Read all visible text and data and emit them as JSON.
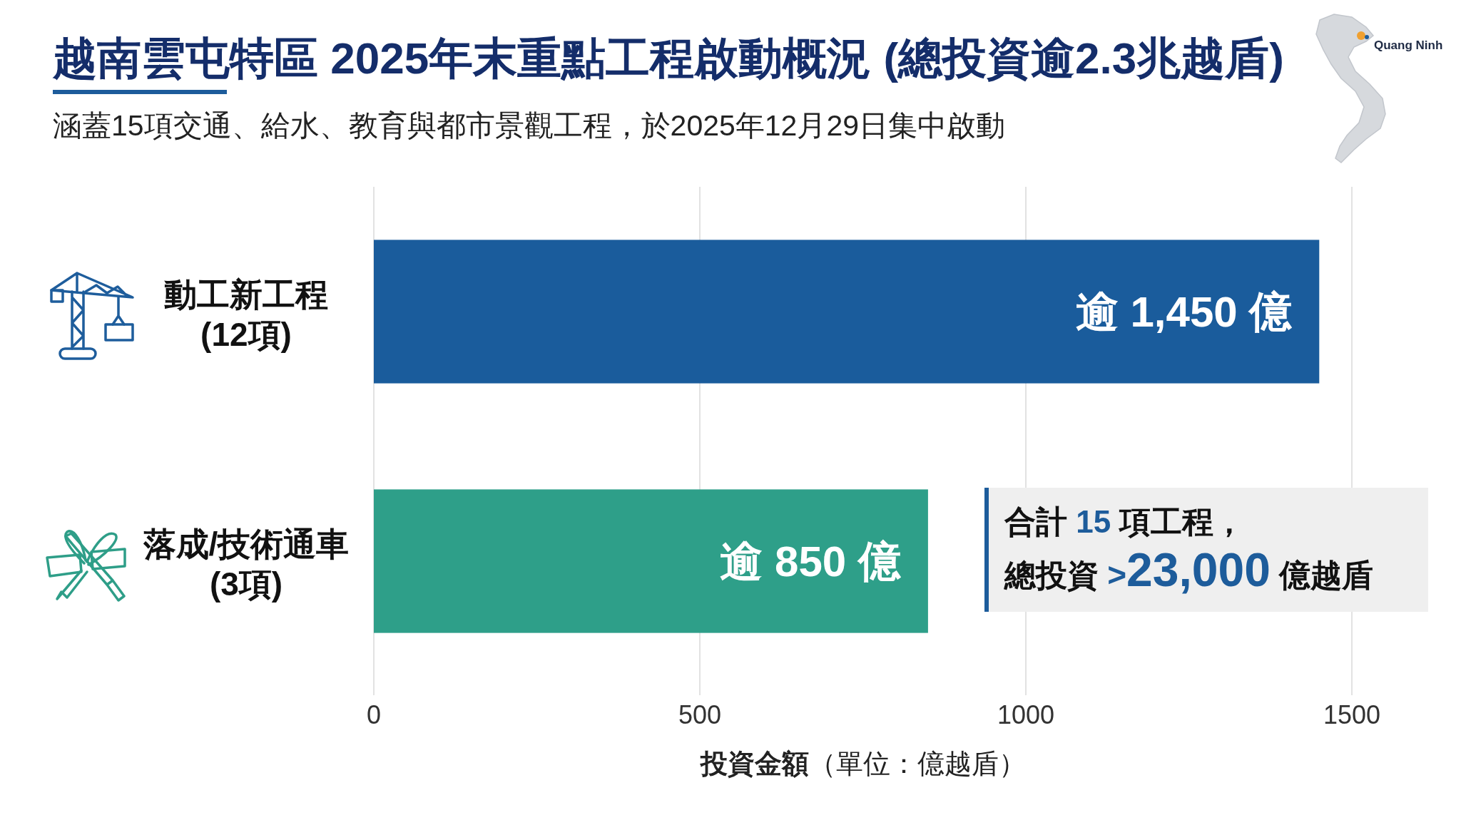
{
  "chart_data": {
    "type": "bar",
    "orientation": "horizontal",
    "title": "越南雲屯特區 2025年末重點工程啟動概況 (總投資逾2.3兆越盾)",
    "subtitle": "涵蓋15項交通、給水、教育與都市景觀工程，於2025年12月29日集中啟動",
    "categories": [
      "動工新工程\n(12項)",
      "落成/技術通車\n(3項)"
    ],
    "values": [
      1450,
      850
    ],
    "colors": [
      "#1a5c9c",
      "#2e9f89"
    ],
    "value_labels": [
      "逾 1,450 億",
      "逾 850 億"
    ],
    "xlabel": "投資金額（單位：億越盾）",
    "xlim": [
      0,
      1500
    ],
    "xticks": [
      0,
      500,
      1000,
      1500
    ],
    "grid": "x",
    "annotations": [
      "合計 15 項工程，",
      "總投資 >23,000 億越盾",
      "Quang Ninh"
    ]
  }
}
